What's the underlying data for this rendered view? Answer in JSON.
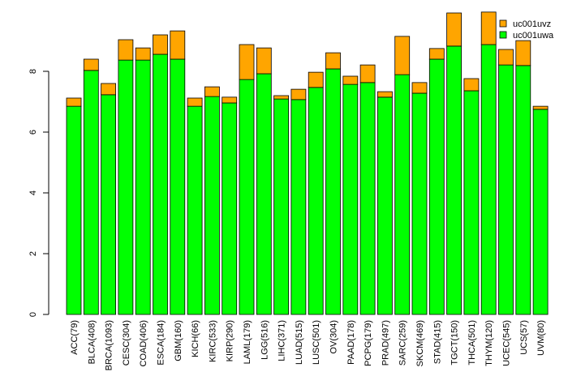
{
  "chart_data": {
    "type": "bar",
    "stacked": true,
    "title": "",
    "xlabel": "",
    "ylabel": "",
    "ylim": [
      0,
      10
    ],
    "yticks": [
      0,
      2,
      4,
      6,
      8
    ],
    "legend_position": "top-right",
    "categories": [
      "ACC(79)",
      "BLCA(408)",
      "BRCA(1093)",
      "CESC(304)",
      "COAD(406)",
      "ESCA(184)",
      "GBM(160)",
      "KICH(66)",
      "KIRC(533)",
      "KIRP(290)",
      "LAML(179)",
      "LGG(516)",
      "LIHC(371)",
      "LUAD(515)",
      "LUSC(501)",
      "OV(304)",
      "PAAD(178)",
      "PCPG(179)",
      "PRAD(497)",
      "SARC(259)",
      "SKCM(469)",
      "STAD(415)",
      "TGCT(150)",
      "THCA(501)",
      "THYM(120)",
      "UCEC(545)",
      "UCS(57)",
      "UVM(80)"
    ],
    "series": [
      {
        "name": "uc001uwa",
        "color": "#00ff00",
        "values": [
          6.85,
          8.03,
          7.23,
          8.37,
          8.37,
          8.56,
          8.4,
          6.85,
          7.17,
          6.96,
          7.73,
          7.92,
          7.09,
          7.07,
          7.47,
          8.08,
          7.57,
          7.63,
          7.15,
          7.89,
          7.28,
          8.4,
          8.83,
          7.36,
          8.88,
          8.21,
          8.19,
          6.75
        ]
      },
      {
        "name": "uc001uvz",
        "color": "#ffa500",
        "values": [
          0.27,
          0.37,
          0.37,
          0.67,
          0.4,
          0.64,
          0.93,
          0.27,
          0.32,
          0.19,
          1.15,
          0.85,
          0.11,
          0.34,
          0.5,
          0.53,
          0.27,
          0.58,
          0.18,
          1.26,
          0.35,
          0.35,
          1.09,
          0.4,
          1.07,
          0.51,
          0.82,
          0.1
        ]
      }
    ]
  }
}
